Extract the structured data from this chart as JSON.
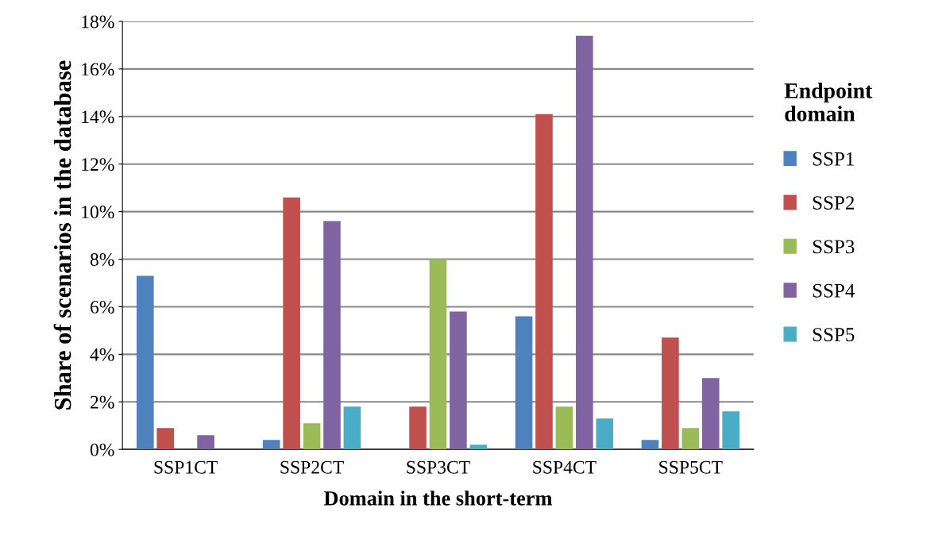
{
  "chart_data": {
    "type": "bar",
    "xlabel": "Domain in the short-term",
    "ylabel": "Share of scenarios in the database",
    "legend_title": "Endpoint domain",
    "categories": [
      "SSP1CT",
      "SSP2CT",
      "SSP3CT",
      "SSP4CT",
      "SSP5CT"
    ],
    "series": [
      {
        "name": "SSP1",
        "color": "#4f81bd",
        "values": [
          7.3,
          0.4,
          0.0,
          5.6,
          0.4
        ]
      },
      {
        "name": "SSP2",
        "color": "#c0504d",
        "values": [
          0.9,
          10.6,
          1.8,
          14.1,
          4.7
        ]
      },
      {
        "name": "SSP3",
        "color": "#9bbb59",
        "values": [
          0.0,
          1.1,
          8.0,
          1.8,
          0.9
        ]
      },
      {
        "name": "SSP4",
        "color": "#8064a2",
        "values": [
          0.6,
          9.6,
          5.8,
          17.4,
          3.0
        ]
      },
      {
        "name": "SSP5",
        "color": "#4bacc6",
        "values": [
          0.0,
          1.8,
          0.2,
          1.3,
          1.6
        ]
      }
    ],
    "ylim": [
      0,
      18
    ],
    "yticks": [
      {
        "value": 0,
        "label": "0%"
      },
      {
        "value": 2,
        "label": "2%"
      },
      {
        "value": 4,
        "label": "4%"
      },
      {
        "value": 6,
        "label": "6%"
      },
      {
        "value": 8,
        "label": "8%"
      },
      {
        "value": 10,
        "label": "10%"
      },
      {
        "value": 12,
        "label": "12%"
      },
      {
        "value": 14,
        "label": "14%"
      },
      {
        "value": 16,
        "label": "16%"
      },
      {
        "value": 18,
        "label": "18%"
      }
    ],
    "grid": "y",
    "legend": "right"
  }
}
